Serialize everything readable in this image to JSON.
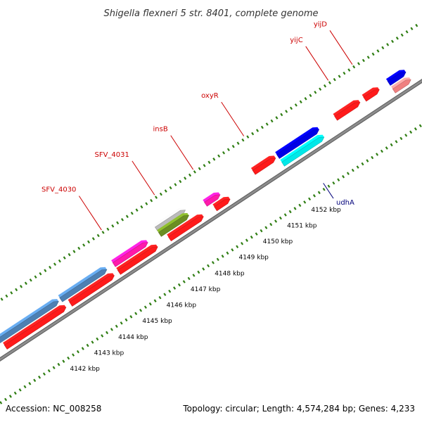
{
  "title": "Shigella flexneri 5 str. 8401, complete genome",
  "footer": {
    "accession": "Accession: NC_008258",
    "summary": "Topology: circular; Length: 4,574,284 bp; Genes: 4,233"
  },
  "colors": {
    "backbone": "#8c8c8c",
    "tick": "#2e7d12",
    "cds": "#ff1a1a",
    "label_forward": "#cc0000",
    "label_reverse": "#00007a"
  },
  "scale": {
    "unit": "kbp",
    "labels": [
      "4142 kbp",
      "4143 kbp",
      "4144 kbp",
      "4145 kbp",
      "4146 kbp",
      "4147 kbp",
      "4148 kbp",
      "4149 kbp",
      "4150 kbp",
      "4151 kbp",
      "4152 kbp"
    ]
  },
  "features": [
    {
      "name": "blue-feature",
      "strand": "outer-top",
      "start": 4140.2,
      "end": 4142.9,
      "color": "#4d80b3"
    },
    {
      "name": "blue-feature",
      "strand": "outer-top",
      "start": 4143.0,
      "end": 4144.9,
      "color": "#4d80b3"
    },
    {
      "name": "cds",
      "strand": "outer-bottom",
      "start": 4140.5,
      "end": 4143.0,
      "color": "#ff1a1a"
    },
    {
      "name": "cds",
      "strand": "outer-bottom",
      "start": 4143.2,
      "end": 4145.0,
      "color": "#ff1a1a"
    },
    {
      "name": "SFV_4030",
      "strand": "outer-top",
      "start": 4145.2,
      "end": 4146.6,
      "color": "#ff1aaa"
    },
    {
      "name": "cds",
      "strand": "outer-bottom",
      "start": 4145.2,
      "end": 4146.8,
      "color": "#ff1a1a"
    },
    {
      "name": "SFV_4031",
      "strand": "upper",
      "start": 4147.1,
      "end": 4148.3,
      "color": "#bbbbbb"
    },
    {
      "name": "SFV_4031",
      "strand": "outer-top",
      "start": 4147.1,
      "end": 4148.3,
      "color": "#6b8e23"
    },
    {
      "name": "cds",
      "strand": "outer-bottom",
      "start": 4147.3,
      "end": 4148.7,
      "color": "#ff1a1a"
    },
    {
      "name": "insB",
      "strand": "outer-top",
      "start": 4149.0,
      "end": 4149.6,
      "color": "#ff1aaa"
    },
    {
      "name": "cds",
      "strand": "outer-bottom",
      "start": 4149.2,
      "end": 4149.8,
      "color": "#ff1a1a"
    },
    {
      "name": "oxyR",
      "strand": "outer-top",
      "start": 4151.0,
      "end": 4151.9,
      "color": "#ff1a1a"
    },
    {
      "name": "udhA",
      "strand": "outer-bottom",
      "start": 4152.0,
      "end": 4153.7,
      "color": "#00e8e8"
    },
    {
      "name": "udhA",
      "strand": "outer-top",
      "start": 4152.0,
      "end": 4153.7,
      "color": "#0000e6"
    },
    {
      "name": "yijC",
      "strand": "outer-top",
      "start": 4154.4,
      "end": 4155.4,
      "color": "#ff1a1a"
    },
    {
      "name": "yijD",
      "strand": "outer-top",
      "start": 4155.6,
      "end": 4156.2,
      "color": "#ff1a1a"
    },
    {
      "name": "blue-feature",
      "strand": "outer-top",
      "start": 4156.6,
      "end": 4157.3,
      "color": "#0000e6"
    },
    {
      "name": "pink-feature",
      "strand": "outer-bottom",
      "start": 4156.6,
      "end": 4157.3,
      "color": "#f08080"
    }
  ],
  "gene_labels": [
    {
      "text": "SFV_4030",
      "pos": 4145.5,
      "strand": "forward"
    },
    {
      "text": "SFV_4031",
      "pos": 4147.7,
      "strand": "forward"
    },
    {
      "text": "insB",
      "pos": 4149.3,
      "strand": "forward"
    },
    {
      "text": "oxyR",
      "pos": 4151.4,
      "strand": "forward"
    },
    {
      "text": "yijC",
      "pos": 4154.9,
      "strand": "forward"
    },
    {
      "text": "yijD",
      "pos": 4155.9,
      "strand": "forward"
    },
    {
      "text": "udhA",
      "pos": 4152.8,
      "strand": "reverse"
    }
  ]
}
